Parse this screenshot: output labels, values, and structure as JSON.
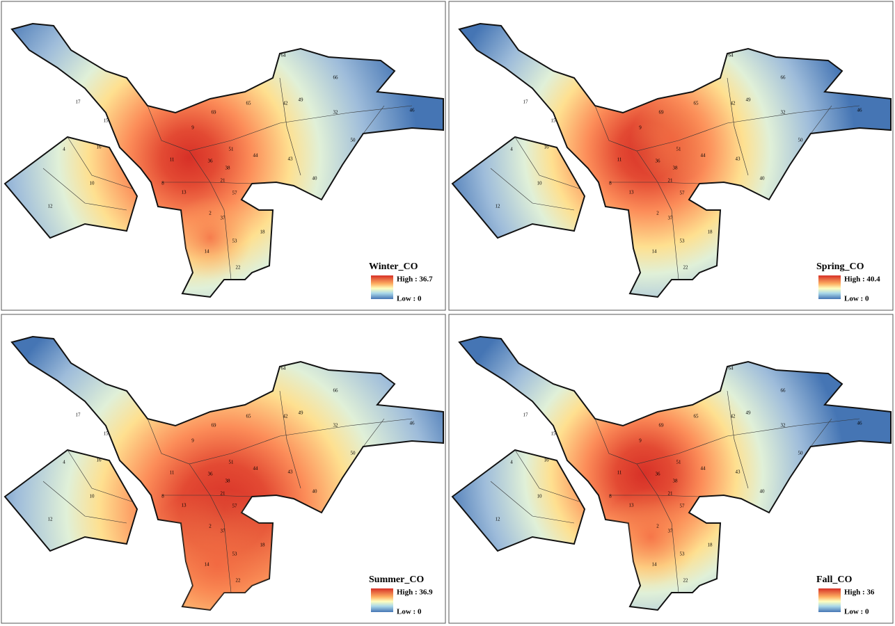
{
  "panels": [
    {
      "legend_title": "Winter_CO",
      "high": "High : 36.7",
      "low": "Low : 0"
    },
    {
      "legend_title": "Spring_CO",
      "high": "High : 40.4",
      "low": "Low : 0"
    },
    {
      "legend_title": "Summer_CO",
      "high": "High : 36.9",
      "low": "Low : 0"
    },
    {
      "legend_title": "Fall_CO",
      "high": "High : 36",
      "low": "Low : 0"
    }
  ],
  "district_labels": [
    "64",
    "66",
    "17",
    "15",
    "16",
    "4",
    "10",
    "12",
    "32",
    "46",
    "50",
    "44",
    "43",
    "40",
    "2",
    "37",
    "18",
    "53",
    "14",
    "22",
    "13",
    "57",
    "49",
    "42",
    "65",
    "69",
    "51",
    "38",
    "21",
    "36",
    "9",
    "8",
    "11"
  ]
}
